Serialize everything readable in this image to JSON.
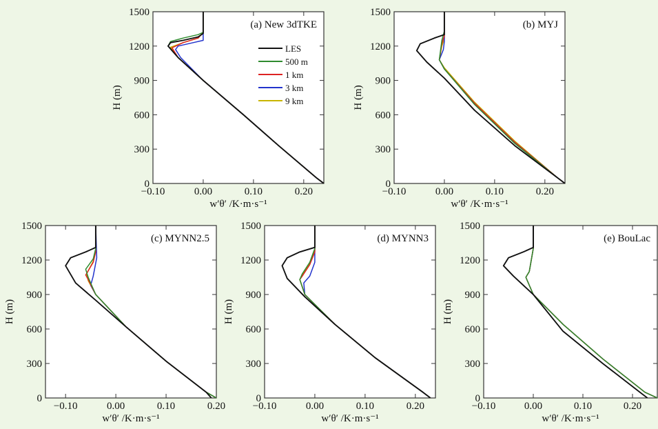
{
  "colors": {
    "background": "#eef6e6",
    "plot_background": "#ffffff",
    "LES": "#111111",
    "500 m": "#2e8b2e",
    "1 km": "#dd2222",
    "3 km": "#2233cc",
    "9 km": "#c8b400"
  },
  "legend_entries": [
    "LES",
    "500 m",
    "1 km",
    "3 km",
    "9 km"
  ],
  "chart_data": [
    {
      "type": "line",
      "title": "(a) New 3dTKE",
      "xlabel": "w′θ′ /K·m·s⁻¹",
      "ylabel": "H (m)",
      "xlim": [
        -0.1,
        0.24
      ],
      "ylim": [
        0,
        1500
      ],
      "xticks": [
        -0.1,
        0.0,
        0.1,
        0.2
      ],
      "xticklabels": [
        "−0.10",
        "0.00",
        "0.10",
        "0.20"
      ],
      "yticks": [
        0,
        300,
        600,
        900,
        1200,
        1500
      ],
      "yticklabels": [
        "0",
        "300",
        "600",
        "900",
        "1200",
        "1500"
      ],
      "legend": "top-right",
      "grid": false,
      "series": [
        {
          "name": "LES",
          "x": [
            0.24,
            0.225,
            0.15,
            0.08,
            0.0,
            -0.05,
            -0.07,
            -0.065,
            -0.04,
            -0.01,
            0.0,
            0.0
          ],
          "y": [
            0,
            50,
            330,
            600,
            900,
            1100,
            1200,
            1230,
            1250,
            1280,
            1310,
            1500
          ]
        },
        {
          "name": "500 m",
          "x": [
            0.24,
            0.225,
            0.15,
            0.08,
            0.0,
            -0.05,
            -0.07,
            -0.065,
            -0.04,
            -0.01,
            0.0,
            0.0
          ],
          "y": [
            0,
            50,
            330,
            600,
            900,
            1100,
            1200,
            1240,
            1270,
            1300,
            1320,
            1500
          ]
        },
        {
          "name": "1 km",
          "x": [
            0.24,
            0.225,
            0.15,
            0.08,
            0.0,
            -0.05,
            -0.062,
            -0.04,
            -0.01,
            0.0,
            0.0
          ],
          "y": [
            0,
            50,
            330,
            600,
            900,
            1100,
            1185,
            1230,
            1270,
            1320,
            1500
          ]
        },
        {
          "name": "3 km",
          "x": [
            0.24,
            0.225,
            0.15,
            0.08,
            0.0,
            -0.045,
            -0.055,
            -0.05,
            -0.02,
            0.0,
            0.0
          ],
          "y": [
            0,
            50,
            330,
            600,
            900,
            1100,
            1170,
            1200,
            1230,
            1250,
            1500
          ]
        },
        {
          "name": "9 km",
          "x": [
            0.24,
            0.225,
            0.15,
            0.08,
            0.0,
            -0.05,
            -0.065,
            -0.04,
            -0.01,
            0.0,
            0.0
          ],
          "y": [
            0,
            50,
            330,
            600,
            900,
            1100,
            1190,
            1230,
            1270,
            1320,
            1500
          ]
        }
      ]
    },
    {
      "type": "line",
      "title": "(b) MYJ",
      "xlabel": "w′θ′ /K·m·s⁻¹",
      "ylabel": "H (m)",
      "xlim": [
        -0.1,
        0.24
      ],
      "ylim": [
        0,
        1500
      ],
      "xticks": [
        -0.1,
        0.0,
        0.1,
        0.2
      ],
      "xticklabels": [
        "−0.10",
        "0.00",
        "0.10",
        "0.20"
      ],
      "yticks": [
        0,
        300,
        600,
        900,
        1200,
        1500
      ],
      "yticklabels": [
        "0",
        "300",
        "600",
        "900",
        "1200",
        "1500"
      ],
      "grid": false,
      "series": [
        {
          "name": "LES",
          "x": [
            0.24,
            0.225,
            0.14,
            0.06,
            0.0,
            -0.035,
            -0.055,
            -0.048,
            -0.02,
            0.0,
            0.0
          ],
          "y": [
            0,
            50,
            330,
            640,
            920,
            1060,
            1160,
            1220,
            1270,
            1300,
            1500
          ]
        },
        {
          "name": "500 m",
          "x": [
            0.24,
            0.225,
            0.14,
            0.06,
            0.0,
            -0.01,
            -0.005,
            0.0,
            0.0
          ],
          "y": [
            0,
            50,
            350,
            690,
            1000,
            1080,
            1250,
            1330,
            1500
          ]
        },
        {
          "name": "1 km",
          "x": [
            0.24,
            0.225,
            0.14,
            0.06,
            0.0,
            -0.01,
            -0.005,
            0.0,
            0.0
          ],
          "y": [
            0,
            50,
            360,
            700,
            1000,
            1080,
            1220,
            1290,
            1500
          ]
        },
        {
          "name": "3 km",
          "x": [
            0.24,
            0.225,
            0.14,
            0.06,
            0.0,
            -0.01,
            -0.002,
            0.0,
            0.0
          ],
          "y": [
            0,
            50,
            360,
            700,
            1000,
            1080,
            1170,
            1240,
            1500
          ]
        },
        {
          "name": "9 km",
          "x": [
            0.24,
            0.225,
            0.14,
            0.06,
            0.0,
            -0.01,
            -0.005,
            0.0,
            0.0
          ],
          "y": [
            0,
            50,
            370,
            710,
            1010,
            1080,
            1200,
            1260,
            1500
          ]
        }
      ]
    },
    {
      "type": "line",
      "title": "(c) MYNN2.5",
      "xlabel": "w′θ′ /K·m·s⁻¹",
      "ylabel": "H (m)",
      "xlim": [
        -0.14,
        0.2
      ],
      "ylim": [
        0,
        1500
      ],
      "xticks": [
        -0.1,
        0.0,
        0.1,
        0.2
      ],
      "xticklabels": [
        "−0.10",
        "0.00",
        "0.10",
        "0.20"
      ],
      "yticks": [
        0,
        300,
        600,
        900,
        1200,
        1500
      ],
      "yticklabels": [
        "0",
        "300",
        "600",
        "900",
        "1200",
        "1500"
      ],
      "grid": false,
      "series": [
        {
          "name": "LES",
          "x": [
            0.19,
            0.18,
            0.1,
            0.02,
            -0.04,
            -0.08,
            -0.1,
            -0.09,
            -0.06,
            -0.04,
            -0.04
          ],
          "y": [
            0,
            50,
            320,
            620,
            850,
            1000,
            1150,
            1220,
            1270,
            1310,
            1500
          ]
        },
        {
          "name": "500 m",
          "x": [
            0.2,
            0.18,
            0.1,
            0.02,
            -0.04,
            -0.055,
            -0.06,
            -0.045,
            -0.04,
            -0.04
          ],
          "y": [
            0,
            50,
            320,
            620,
            900,
            1050,
            1120,
            1210,
            1300,
            1500
          ]
        },
        {
          "name": "1 km",
          "x": [
            0.2,
            0.18,
            0.1,
            0.02,
            -0.04,
            -0.055,
            -0.06,
            -0.045,
            -0.04,
            -0.04
          ],
          "y": [
            0,
            50,
            320,
            620,
            900,
            1030,
            1070,
            1180,
            1270,
            1500
          ]
        },
        {
          "name": "3 km",
          "x": [
            0.2,
            0.18,
            0.1,
            0.02,
            -0.04,
            -0.05,
            -0.045,
            -0.038,
            -0.04
          ],
          "y": [
            0,
            50,
            320,
            620,
            900,
            980,
            1060,
            1220,
            1500
          ]
        },
        {
          "name": "9 km",
          "x": [
            0.2,
            0.18,
            0.1,
            0.02,
            -0.04,
            -0.055,
            -0.058,
            -0.045,
            -0.04,
            -0.04
          ],
          "y": [
            0,
            50,
            320,
            620,
            900,
            1020,
            1080,
            1190,
            1280,
            1500
          ]
        }
      ]
    },
    {
      "type": "line",
      "title": "(d) MYNN3",
      "xlabel": "w′θ′ /K·m·s⁻¹",
      "ylabel": "H (m)",
      "xlim": [
        -0.1,
        0.24
      ],
      "ylim": [
        0,
        1500
      ],
      "xticks": [
        -0.1,
        0.0,
        0.1,
        0.2
      ],
      "xticklabels": [
        "−0.10",
        "0.00",
        "0.10",
        "0.20"
      ],
      "yticks": [
        0,
        300,
        600,
        900,
        1200,
        1500
      ],
      "yticklabels": [
        "0",
        "300",
        "600",
        "900",
        "1200",
        "1500"
      ],
      "grid": false,
      "series": [
        {
          "name": "LES",
          "x": [
            0.23,
            0.215,
            0.12,
            0.04,
            -0.02,
            -0.055,
            -0.065,
            -0.055,
            -0.03,
            0.0,
            0.0
          ],
          "y": [
            0,
            50,
            350,
            640,
            880,
            1040,
            1150,
            1220,
            1270,
            1310,
            1500
          ]
        },
        {
          "name": "500 m",
          "x": [
            0.23,
            0.215,
            0.12,
            0.04,
            -0.02,
            -0.03,
            -0.025,
            -0.01,
            0.0,
            0.0
          ],
          "y": [
            0,
            50,
            350,
            640,
            900,
            1030,
            1080,
            1180,
            1300,
            1500
          ]
        },
        {
          "name": "1 km",
          "x": [
            0.23,
            0.215,
            0.12,
            0.04,
            -0.02,
            -0.03,
            -0.025,
            -0.01,
            0.0,
            0.0
          ],
          "y": [
            0,
            50,
            350,
            640,
            900,
            1030,
            1060,
            1160,
            1270,
            1500
          ]
        },
        {
          "name": "3 km",
          "x": [
            0.23,
            0.215,
            0.12,
            0.04,
            -0.02,
            -0.022,
            -0.01,
            0.0,
            0.0
          ],
          "y": [
            0,
            50,
            350,
            640,
            900,
            1000,
            1060,
            1180,
            1500
          ]
        },
        {
          "name": "9 km",
          "x": [
            0.23,
            0.215,
            0.12,
            0.04,
            -0.02,
            -0.03,
            -0.025,
            -0.01,
            0.0,
            0.0
          ],
          "y": [
            0,
            50,
            350,
            640,
            900,
            1030,
            1070,
            1170,
            1280,
            1500
          ]
        }
      ]
    },
    {
      "type": "line",
      "title": "(e) BouLac",
      "xlabel": "w′θ′ /K·m·s⁻¹",
      "ylabel": "H (m)",
      "xlim": [
        -0.1,
        0.25
      ],
      "ylim": [
        0,
        1500
      ],
      "xticks": [
        -0.1,
        0.0,
        0.1,
        0.2
      ],
      "xticklabels": [
        "−0.10",
        "0.00",
        "0.10",
        "0.20"
      ],
      "yticks": [
        0,
        300,
        600,
        900,
        1200,
        1500
      ],
      "yticklabels": [
        "0",
        "300",
        "600",
        "900",
        "1200",
        "1500"
      ],
      "grid": false,
      "series": [
        {
          "name": "LES",
          "x": [
            0.23,
            0.215,
            0.14,
            0.06,
            0.0,
            -0.04,
            -0.06,
            -0.05,
            -0.02,
            0.0,
            0.0
          ],
          "y": [
            0,
            50,
            300,
            580,
            900,
            1060,
            1150,
            1220,
            1270,
            1310,
            1500
          ]
        },
        {
          "name": "500 m",
          "x": [
            0.25,
            0.225,
            0.14,
            0.06,
            0.0,
            -0.015,
            -0.008,
            0.0,
            0.0
          ],
          "y": [
            0,
            50,
            340,
            640,
            900,
            1050,
            1100,
            1300,
            1500
          ]
        },
        {
          "name": "1 km",
          "x": [
            0.25,
            0.225,
            0.14,
            0.06,
            0.0,
            -0.015,
            -0.008,
            0.0,
            0.0
          ],
          "y": [
            0,
            50,
            340,
            640,
            900,
            1050,
            1100,
            1300,
            1500
          ]
        },
        {
          "name": "3 km",
          "x": [
            0.25,
            0.225,
            0.14,
            0.06,
            0.0,
            -0.015,
            -0.008,
            0.0,
            0.0
          ],
          "y": [
            0,
            50,
            340,
            640,
            900,
            1050,
            1100,
            1300,
            1500
          ]
        },
        {
          "name": "9 km",
          "x": [
            0.25,
            0.225,
            0.14,
            0.06,
            0.0,
            -0.015,
            -0.008,
            0.0,
            0.0
          ],
          "y": [
            0,
            50,
            340,
            640,
            900,
            1050,
            1100,
            1300,
            1500
          ]
        }
      ]
    }
  ]
}
